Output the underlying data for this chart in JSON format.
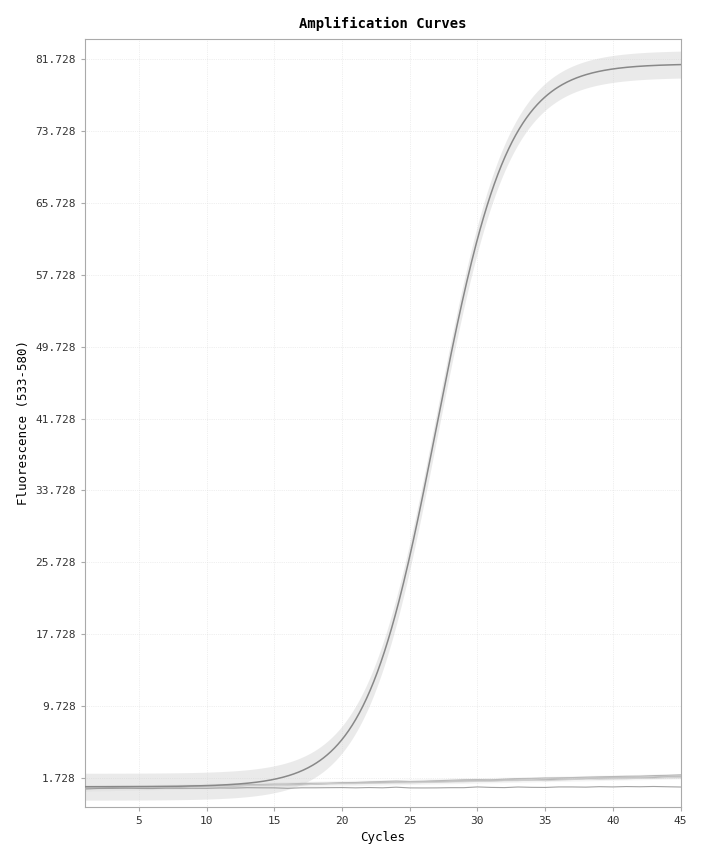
{
  "title": "Amplification Curves",
  "xlabel": "Cycles",
  "ylabel": "Fluorescence (533-580)",
  "xlim": [
    1,
    45
  ],
  "ylim": [
    -1.5,
    84
  ],
  "xticks": [
    5,
    10,
    15,
    20,
    25,
    30,
    35,
    40,
    45
  ],
  "yticks": [
    1.728,
    9.728,
    17.728,
    25.728,
    33.728,
    41.728,
    49.728,
    57.728,
    65.728,
    73.728,
    81.728
  ],
  "background_color": "#ffffff",
  "plot_bg_color": "#ffffff",
  "main_curve_color": "#888888",
  "band_color": "#cccccc",
  "title_fontsize": 10,
  "axis_label_fontsize": 9,
  "tick_fontsize": 8,
  "sigmoid_L": 80.5,
  "sigmoid_k": 0.38,
  "sigmoid_x0": 27.0,
  "sigmoid_baseline": 0.728,
  "flat_colors": [
    "#aaaaaa",
    "#b0b0b0",
    "#c0c0c0",
    "#d0d0d0",
    "#999999"
  ],
  "flat_baselines": [
    0.528,
    0.518,
    0.528,
    0.525,
    0.52
  ],
  "flat_end_values": [
    1.828,
    2.028,
    1.928,
    1.728,
    0.728
  ],
  "dotted_grid_color": "#dddddd"
}
